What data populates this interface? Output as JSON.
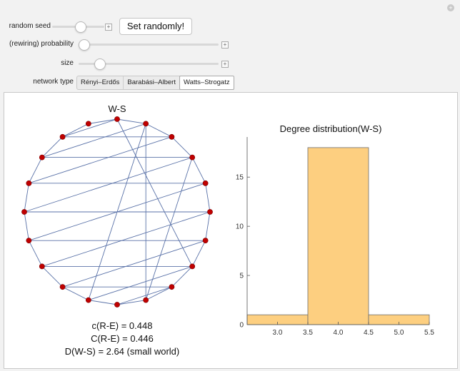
{
  "controls": {
    "random_seed_label": "random seed",
    "set_randomly_label": "Set randomly!",
    "probability_label": "(rewiring) probability",
    "size_label": "size",
    "network_type_label": "network type",
    "network_types": [
      "Rényi–Erdős",
      "Barabási–Albert",
      "Watts–Strogatz"
    ],
    "selected_network_type": "Watts–Strogatz",
    "seed_slider": 0.55,
    "probability_slider": 0.0,
    "size_slider": 0.12
  },
  "graph": {
    "title": "W-S",
    "node_color": "#c00000",
    "edge_color": "#5a72a8",
    "node_count": 20
  },
  "stats": {
    "c_re": "c(R-E) = 0.448",
    "C_re": "C(R-E) = 0.446",
    "D_ws": "D(W-S) = 2.64 (small world)"
  },
  "chart_data": {
    "type": "bar",
    "title": "Degree distribution(W-S)",
    "bins": [
      [
        2.5,
        3.5
      ],
      [
        3.5,
        4.5
      ],
      [
        4.5,
        5.5
      ]
    ],
    "values": [
      1,
      18,
      1
    ],
    "xticks": [
      3.0,
      3.5,
      4.0,
      4.5,
      5.0,
      5.5
    ],
    "yticks": [
      0,
      5,
      10,
      15
    ],
    "xlim": [
      2.5,
      5.5
    ],
    "ylim": [
      0,
      18.5
    ],
    "bar_color": "#fdcf80",
    "bar_edge": "#6e6e6e"
  }
}
